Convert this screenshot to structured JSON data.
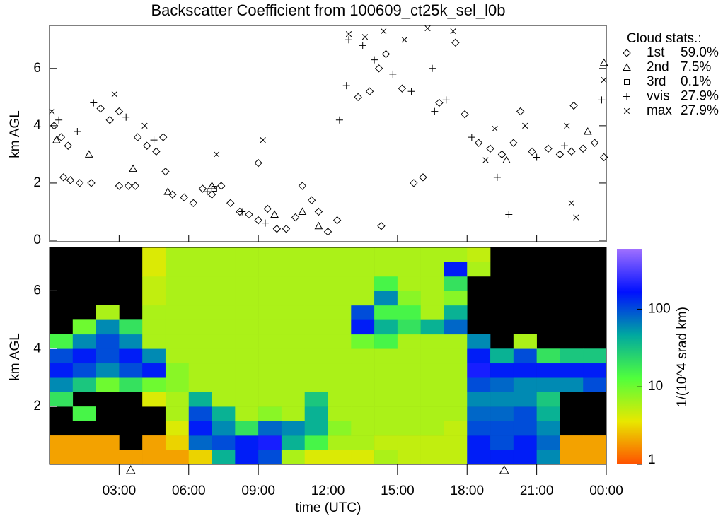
{
  "chart_data": [
    {
      "type": "scatter",
      "title": "Backscatter Coefficient from 100609_ct25k_sel_l0b",
      "ylabel": "km AGL",
      "xlim": [
        0,
        24
      ],
      "xticks": [
        3,
        6,
        9,
        12,
        15,
        18,
        21,
        24
      ],
      "ylim": [
        0,
        7.5
      ],
      "yticks": [
        0,
        2,
        4,
        6
      ],
      "legend_title": "Cloud stats.:",
      "legend": "upper right",
      "series": [
        {
          "name": "1st",
          "marker": "diamond",
          "color": "#000000",
          "stat": 59.0,
          "stat_label": "59.0%",
          "x": [
            0.2,
            0.5,
            0.8,
            0.6,
            0.9,
            1.3,
            1.8,
            2.2,
            2.6,
            3.0,
            3.0,
            3.4,
            3.7,
            3.8,
            4.2,
            4.6,
            4.9,
            5.0,
            5.3,
            5.8,
            6.2,
            6.6,
            7.0,
            7.4,
            7.8,
            8.2,
            8.6,
            9.0,
            9.4,
            9.8,
            10.2,
            10.6,
            10.9,
            11.3,
            11.6,
            12.0,
            12.4,
            13.3,
            13.8,
            14.3,
            14.2,
            14.5,
            15.2,
            16.1,
            15.7,
            16.8,
            17.5,
            17.9,
            18.5,
            19.0,
            19.5,
            20.0,
            20.3,
            20.8,
            21.5,
            22.0,
            22.5,
            23.0,
            23.5,
            23.9,
            22.6,
            9.0
          ],
          "y": [
            4.0,
            3.6,
            3.3,
            2.2,
            2.1,
            2.0,
            2.0,
            4.6,
            4.2,
            4.5,
            1.9,
            1.9,
            1.9,
            3.6,
            3.3,
            3.1,
            3.6,
            2.4,
            1.6,
            1.5,
            1.3,
            1.8,
            1.6,
            1.9,
            1.3,
            1.0,
            0.9,
            0.7,
            1.1,
            0.4,
            0.4,
            0.8,
            1.9,
            1.4,
            1.0,
            0.3,
            0.7,
            5.0,
            5.2,
            0.5,
            6.0,
            6.5,
            5.3,
            2.2,
            2.0,
            4.8,
            6.9,
            4.4,
            3.4,
            3.2,
            3.0,
            3.4,
            4.5,
            3.1,
            3.2,
            3.0,
            3.1,
            3.2,
            3.4,
            2.9,
            4.7,
            2.7
          ]
        },
        {
          "name": "2nd",
          "marker": "triangle",
          "color": "#000000",
          "stat": 7.5,
          "stat_label": "7.5%",
          "x": [
            0.3,
            1.7,
            3.6,
            5.1,
            7.0,
            9.7,
            10.9,
            11.6,
            23.2,
            23.9,
            19.7
          ],
          "y": [
            3.5,
            3.0,
            2.5,
            1.7,
            1.9,
            0.9,
            1.0,
            0.5,
            3.8,
            6.2,
            2.8
          ]
        },
        {
          "name": "3rd",
          "marker": "square",
          "color": "#000000",
          "stat": 0.1,
          "stat_label": "0.1%",
          "x": [
            7.1
          ],
          "y": [
            1.8
          ]
        },
        {
          "name": "vvis",
          "marker": "plus",
          "color": "#000000",
          "stat": 27.9,
          "stat_label": "27.9%",
          "x": [
            0.4,
            1.2,
            1.9,
            3.3,
            4.5,
            6.8,
            8.3,
            9.3,
            12.5,
            12.8,
            13.5,
            14.0,
            14.8,
            15.6,
            16.5,
            17.1,
            18.2,
            19.3,
            19.8,
            21.0,
            22.2,
            23.8,
            12.9,
            16.6
          ],
          "y": [
            4.2,
            3.8,
            4.8,
            4.3,
            3.5,
            1.7,
            1.0,
            0.6,
            4.2,
            5.4,
            6.8,
            6.3,
            5.8,
            5.2,
            6.0,
            4.9,
            3.6,
            2.2,
            0.9,
            2.9,
            3.3,
            4.9,
            7.0,
            4.5
          ]
        },
        {
          "name": "max",
          "marker": "cross",
          "color": "#000000",
          "stat": 27.9,
          "stat_label": "27.9%",
          "x": [
            0.1,
            2.8,
            4.1,
            7.2,
            9.2,
            12.9,
            13.6,
            14.4,
            15.3,
            16.3,
            17.4,
            18.8,
            19.2,
            20.5,
            22.3,
            22.7,
            23.9,
            22.5
          ],
          "y": [
            4.5,
            5.1,
            4.0,
            3.0,
            3.5,
            7.2,
            7.1,
            7.3,
            7.0,
            7.4,
            7.3,
            2.8,
            3.9,
            4.0,
            4.0,
            0.8,
            5.6,
            1.3
          ]
        }
      ]
    },
    {
      "type": "heatmap",
      "ylabel": "km AGL",
      "xlabel": "time (UTC)",
      "xlim": [
        0,
        24
      ],
      "xticks": [
        {
          "value": 3,
          "label": "03:00"
        },
        {
          "value": 6,
          "label": "06:00"
        },
        {
          "value": 9,
          "label": "09:00"
        },
        {
          "value": 12,
          "label": "12:00"
        },
        {
          "value": 15,
          "label": "15:00"
        },
        {
          "value": 18,
          "label": "18:00"
        },
        {
          "value": 21,
          "label": "21:00"
        },
        {
          "value": 24,
          "label": "00:00"
        }
      ],
      "ylim": [
        0,
        7.5
      ],
      "yticks": [
        2,
        4,
        6
      ],
      "axis_markers": [
        3.5,
        19.6
      ],
      "xbins": [
        0,
        1,
        2,
        3,
        4,
        5,
        6,
        7,
        8,
        9,
        10,
        11,
        12,
        13,
        14,
        15,
        16,
        17,
        18,
        19,
        20,
        21,
        22,
        23,
        24
      ],
      "ybins": [
        0,
        0.5,
        1,
        1.5,
        2,
        2.5,
        3,
        3.5,
        4,
        4.5,
        5,
        5.5,
        6,
        6.5,
        7,
        7.5
      ],
      "z": [
        [
          2,
          2,
          2,
          2,
          2,
          2,
          3,
          40,
          150,
          100,
          6,
          4,
          4,
          4,
          6,
          5,
          5,
          5,
          150,
          150,
          150,
          60,
          2,
          2
        ],
        [
          2,
          2,
          2,
          null,
          2,
          3,
          80,
          100,
          150,
          200,
          40,
          15,
          6,
          6,
          5,
          5,
          5,
          5,
          150,
          100,
          150,
          80,
          2,
          2
        ],
        [
          null,
          null,
          null,
          null,
          null,
          4,
          150,
          60,
          20,
          80,
          60,
          40,
          8,
          6,
          6,
          6,
          6,
          5,
          100,
          100,
          100,
          60,
          null,
          null
        ],
        [
          null,
          15,
          null,
          null,
          null,
          6,
          100,
          40,
          6,
          8,
          6,
          40,
          6,
          6,
          6,
          6,
          6,
          6,
          80,
          80,
          100,
          40,
          null,
          null
        ],
        [
          20,
          null,
          null,
          null,
          4,
          6,
          40,
          6,
          6,
          6,
          6,
          30,
          6,
          6,
          6,
          6,
          6,
          6,
          60,
          60,
          60,
          30,
          null,
          null
        ],
        [
          60,
          30,
          10,
          20,
          10,
          8,
          6,
          6,
          6,
          6,
          6,
          6,
          6,
          6,
          6,
          6,
          6,
          6,
          100,
          80,
          60,
          60,
          60,
          100
        ],
        [
          150,
          100,
          60,
          100,
          150,
          8,
          6,
          6,
          6,
          6,
          6,
          6,
          6,
          6,
          6,
          6,
          6,
          6,
          200,
          150,
          150,
          150,
          150,
          150
        ],
        [
          100,
          150,
          100,
          150,
          60,
          6,
          6,
          6,
          6,
          6,
          6,
          6,
          6,
          6,
          6,
          6,
          6,
          6,
          150,
          40,
          100,
          20,
          30,
          30
        ],
        [
          15,
          60,
          100,
          60,
          6,
          6,
          6,
          6,
          6,
          6,
          6,
          6,
          6,
          10,
          15,
          6,
          6,
          6,
          60,
          null,
          6,
          null,
          null,
          null
        ],
        [
          null,
          10,
          60,
          20,
          6,
          6,
          6,
          6,
          6,
          6,
          6,
          6,
          6,
          150,
          40,
          20,
          40,
          80,
          null,
          null,
          null,
          null,
          null,
          null
        ],
        [
          null,
          null,
          6,
          null,
          6,
          6,
          6,
          6,
          6,
          6,
          6,
          6,
          6,
          100,
          15,
          15,
          6,
          40,
          null,
          null,
          null,
          null,
          null,
          null
        ],
        [
          null,
          null,
          null,
          null,
          5,
          6,
          6,
          6,
          6,
          6,
          6,
          6,
          6,
          6,
          60,
          8,
          6,
          8,
          null,
          null,
          null,
          null,
          null,
          null
        ],
        [
          null,
          null,
          null,
          null,
          5,
          6,
          6,
          6,
          6,
          6,
          6,
          6,
          6,
          6,
          15,
          6,
          6,
          20,
          null,
          null,
          null,
          null,
          null,
          null
        ],
        [
          null,
          null,
          null,
          null,
          4,
          6,
          6,
          6,
          6,
          6,
          6,
          6,
          6,
          6,
          6,
          6,
          6,
          150,
          6,
          null,
          null,
          null,
          null,
          null
        ],
        [
          null,
          null,
          null,
          null,
          4,
          6,
          6,
          6,
          6,
          6,
          6,
          6,
          6,
          6,
          6,
          6,
          6,
          6,
          5,
          null,
          null,
          null,
          null,
          null
        ]
      ],
      "colorbar": {
        "label": "1/(10^4 srad km)",
        "log": true,
        "lim": [
          1,
          600
        ],
        "ticks": [
          1,
          10,
          100
        ],
        "colormap": [
          "#ff5000",
          "#e8e800",
          "#50ff3c",
          "#00a8a0",
          "#0010ff",
          "#a070ff"
        ]
      }
    }
  ]
}
